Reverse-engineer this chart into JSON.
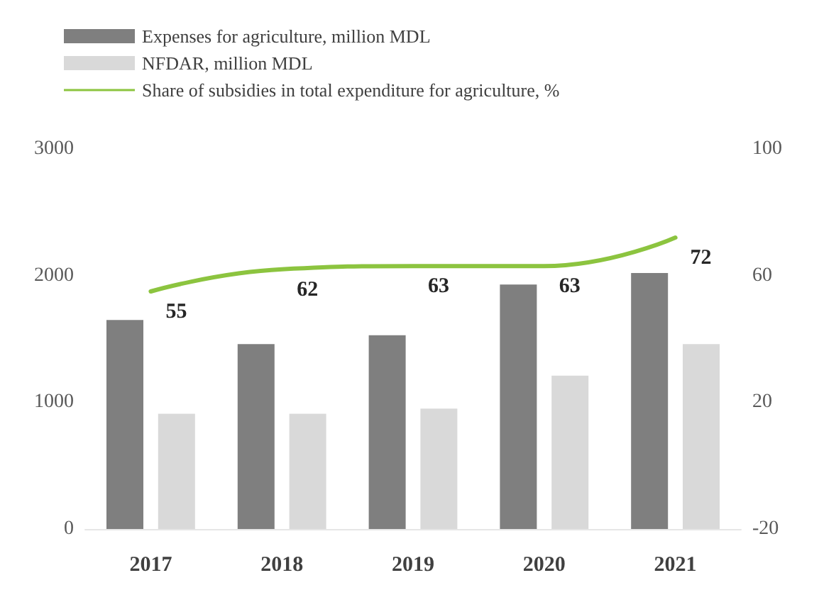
{
  "chart_data": {
    "type": "bar",
    "categories": [
      "2017",
      "2018",
      "2019",
      "2020",
      "2021"
    ],
    "series": [
      {
        "name": "Expenses for agriculture, million MDL",
        "color": "#7f7f7f",
        "values": [
          1650,
          1460,
          1530,
          1930,
          2020
        ]
      },
      {
        "name": "NFDAR, million MDL",
        "color": "#d9d9d9",
        "values": [
          910,
          910,
          950,
          1210,
          1460
        ]
      },
      {
        "name": "Share of subsidies in total expenditure for agriculture, %",
        "type": "line",
        "axis": "y2",
        "color": "#8cc43f",
        "values": [
          55,
          62,
          63,
          63,
          72
        ],
        "value_labels": [
          "55",
          "62",
          "63",
          "63",
          "72"
        ]
      }
    ],
    "ylim": [
      0,
      3000
    ],
    "yticks": [
      0,
      1000,
      2000,
      3000
    ],
    "y2lim": [
      -20,
      100
    ],
    "y2ticks": [
      -20,
      20,
      60,
      100
    ],
    "grid": false,
    "legend": "top left",
    "marker": "none",
    "line_style": "solid"
  }
}
